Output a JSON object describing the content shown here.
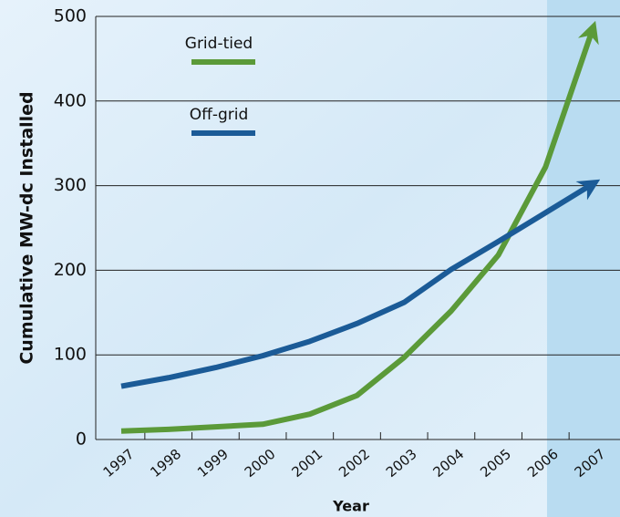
{
  "chart_data": {
    "type": "line",
    "x_label": "Year",
    "y_label": "Cumulative MW-dc Installed",
    "categories": [
      "1997",
      "1998",
      "1999",
      "2000",
      "2001",
      "2002",
      "2003",
      "2004",
      "2005",
      "2006",
      "2007"
    ],
    "series": [
      {
        "name": "Grid-tied",
        "color": "#5b9a39",
        "values": [
          10,
          12,
          15,
          18,
          30,
          52,
          97,
          152,
          218,
          322,
          485
        ]
      },
      {
        "name": "Off-grid",
        "color": "#1b5b97",
        "values": [
          63,
          73,
          85,
          99,
          116,
          137,
          162,
          201,
          234,
          268,
          302
        ]
      }
    ],
    "ylim": [
      0,
      500
    ],
    "yticks": [
      0,
      100,
      200,
      300,
      400,
      500
    ],
    "grid": true
  }
}
